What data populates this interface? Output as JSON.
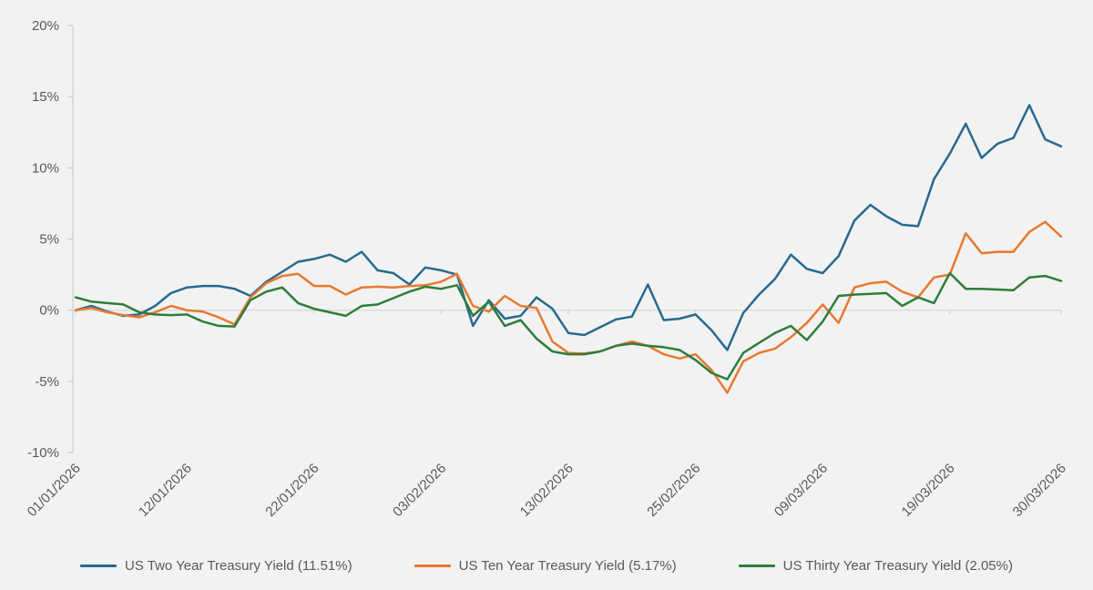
{
  "page": {
    "background_color": "#f2f2f2"
  },
  "chart_data": {
    "type": "line",
    "title": "",
    "x_axis": {
      "tick_labels": [
        "01/01/2026",
        "12/01/2026",
        "22/01/2026",
        "03/02/2026",
        "13/02/2026",
        "25/02/2026",
        "09/03/2026",
        "19/03/2026",
        "30/03/2026"
      ],
      "tick_point_indices": [
        0,
        7,
        15,
        23,
        31,
        39,
        47,
        55,
        62
      ],
      "n_points": 63
    },
    "y_axis": {
      "tick_labels": [
        "20%",
        "15%",
        "10%",
        "5%",
        "0%",
        "-5%",
        "-10%"
      ],
      "tick_values": [
        20,
        15,
        10,
        5,
        0,
        -5,
        -10
      ],
      "range": [
        -10,
        20
      ],
      "unit": "%"
    },
    "grid": "zero-line-only",
    "legend_position": "bottom",
    "series": [
      {
        "name": "US Two Year Treasury Yield (11.51%)",
        "final_value_label": "11.51%",
        "color": "#276a8f",
        "values": [
          0.0,
          0.3,
          -0.1,
          -0.4,
          -0.3,
          0.3,
          1.2,
          1.6,
          1.7,
          1.7,
          1.5,
          1.0,
          2.0,
          2.7,
          3.4,
          3.6,
          3.9,
          3.4,
          4.1,
          2.8,
          2.6,
          1.8,
          3.0,
          2.8,
          2.5,
          -1.1,
          0.7,
          -0.6,
          -0.4,
          0.9,
          0.1,
          -1.6,
          -1.75,
          -1.2,
          -0.65,
          -0.45,
          1.8,
          -0.7,
          -0.6,
          -0.3,
          -1.4,
          -2.8,
          -0.2,
          1.1,
          2.2,
          3.9,
          2.9,
          2.6,
          3.8,
          6.3,
          7.4,
          6.6,
          6.0,
          5.9,
          9.2,
          11.0,
          13.1,
          10.7,
          11.7,
          12.1,
          14.4,
          12.0,
          11.51
        ]
      },
      {
        "name": "US Ten Year Treasury Yield (5.17%)",
        "final_value_label": "5.17%",
        "color": "#e8792f",
        "values": [
          0.0,
          0.15,
          -0.15,
          -0.35,
          -0.5,
          -0.15,
          0.3,
          0.0,
          -0.1,
          -0.5,
          -1.0,
          0.9,
          1.9,
          2.4,
          2.55,
          1.7,
          1.7,
          1.1,
          1.6,
          1.65,
          1.6,
          1.7,
          1.75,
          2.0,
          2.55,
          0.3,
          -0.1,
          1.0,
          0.3,
          0.15,
          -2.2,
          -3.0,
          -3.05,
          -2.9,
          -2.5,
          -2.2,
          -2.5,
          -3.1,
          -3.4,
          -3.1,
          -4.2,
          -5.8,
          -3.6,
          -3.0,
          -2.7,
          -1.9,
          -0.9,
          0.4,
          -0.9,
          1.6,
          1.9,
          2.0,
          1.3,
          0.9,
          2.3,
          2.5,
          5.4,
          4.0,
          4.1,
          4.1,
          5.5,
          6.2,
          5.17
        ]
      },
      {
        "name": "US Thirty Year Treasury Yield (2.05%)",
        "final_value_label": "2.05%",
        "color": "#2e7d3b",
        "values": [
          0.9,
          0.6,
          0.5,
          0.4,
          -0.15,
          -0.3,
          -0.35,
          -0.3,
          -0.8,
          -1.1,
          -1.15,
          0.7,
          1.3,
          1.6,
          0.5,
          0.1,
          -0.15,
          -0.4,
          0.3,
          0.4,
          0.85,
          1.3,
          1.65,
          1.5,
          1.75,
          -0.4,
          0.6,
          -1.1,
          -0.7,
          -2.0,
          -2.9,
          -3.1,
          -3.1,
          -2.9,
          -2.5,
          -2.35,
          -2.5,
          -2.6,
          -2.8,
          -3.5,
          -4.4,
          -4.85,
          -3.0,
          -2.3,
          -1.6,
          -1.1,
          -2.1,
          -0.8,
          1.0,
          1.1,
          1.15,
          1.2,
          0.3,
          0.9,
          0.5,
          2.6,
          1.5,
          1.5,
          1.45,
          1.4,
          2.3,
          2.4,
          2.05
        ]
      }
    ]
  },
  "colors": {
    "axis_line": "#d6d6d6",
    "zero_line": "#d9d9d9",
    "tick_mark": "#cccccc",
    "tick_text": "#595959",
    "legend_text": "#595959"
  }
}
